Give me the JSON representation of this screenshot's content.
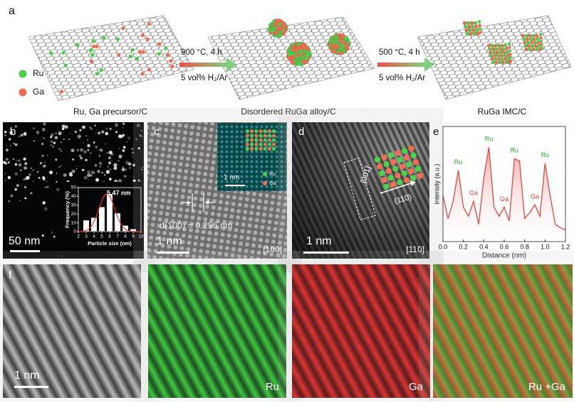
{
  "panel_a": {
    "label": "a",
    "legend": [
      {
        "name": "Ru",
        "color": "#4ccf4c"
      },
      {
        "name": "Ga",
        "color": "#f26c52"
      }
    ],
    "stages": [
      "Ru, Ga precursor/C",
      "Disordered RuGa alloy/C",
      "RuGa IMC/C"
    ],
    "steps": [
      {
        "condition": "900 °C, 4 h",
        "atmosphere": "5 vol% H₂/Ar"
      },
      {
        "condition": "500 °C, 4 h",
        "atmosphere": "5 vol% H₂/Ar"
      }
    ]
  },
  "panel_b": {
    "label": "b",
    "scale_bar": "50 nm"
  },
  "panel_c": {
    "label": "c",
    "spacing": "d(100) = 0.296 nm",
    "scale_bar": "1 nm",
    "zone_axis": "[100]",
    "inset": {
      "scale_bar": "1 nm",
      "legend": [
        "Ru",
        "Ga"
      ]
    }
  },
  "panel_d": {
    "label": "d",
    "direction_1": "[001]",
    "direction_2": "(110)",
    "scale_bar": "1 nm",
    "zone_axis": "[110]"
  },
  "panel_e": {
    "label": "e"
  },
  "panel_f": {
    "label": "f",
    "scale_bar": "1 nm",
    "maps": [
      "Ru",
      "Ga",
      "Ru +Ga"
    ]
  },
  "chart_data": [
    {
      "type": "histogram",
      "bins": [
        2.5,
        3.5,
        4.5,
        5.5,
        6.5,
        7.5,
        8.5,
        9.5
      ],
      "values": [
        13,
        16,
        28,
        43,
        21,
        7,
        3
      ],
      "color": "#ffffff",
      "xlim": [
        2,
        10
      ],
      "ylim": [
        0,
        50
      ],
      "xticks": [
        2,
        3,
        4,
        5,
        6,
        7,
        8,
        9,
        10
      ],
      "yticks": [
        0,
        10,
        20,
        30,
        40,
        50
      ],
      "xlabel": "Particle size (nm)",
      "ylabel": "Frequency (%)",
      "annotation": "5.47 nm"
    },
    {
      "type": "line",
      "x": [
        0,
        0.05,
        0.1,
        0.15,
        0.2,
        0.25,
        0.3,
        0.35,
        0.4,
        0.45,
        0.5,
        0.55,
        0.6,
        0.65,
        0.7,
        0.75,
        0.8,
        0.85,
        0.9,
        0.95,
        1,
        1.05,
        1.1,
        1.15,
        1.2
      ],
      "values": [
        40,
        20,
        35,
        62,
        30,
        22,
        35,
        15,
        55,
        82,
        30,
        22,
        30,
        18,
        72,
        70,
        20,
        25,
        32,
        22,
        68,
        40,
        15,
        12,
        10
      ],
      "color": "#e8473f",
      "xlim": [
        0,
        1.2
      ],
      "ylim": [
        0,
        100
      ],
      "xticks": [
        {
          "value": 0,
          "label": "0.0"
        },
        0.2,
        0.4,
        0.6,
        0.8,
        {
          "value": 1,
          "label": "1.0"
        },
        1.2
      ],
      "xlabel": "Distance (nm)",
      "ylabel": "Intensity (a.u.)",
      "annotations": [
        "Ru",
        "Ga",
        "Ru",
        "Ga",
        "Ru",
        "Ga",
        "Ru"
      ]
    }
  ]
}
